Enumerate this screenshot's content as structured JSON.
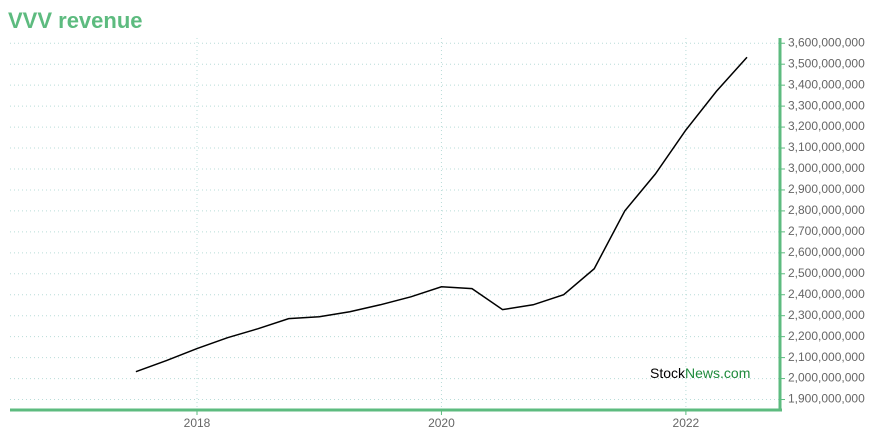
{
  "chart_data": {
    "type": "line",
    "title": "VVV revenue",
    "x": [
      2017.5,
      2017.75,
      2018,
      2018.25,
      2018.5,
      2018.75,
      2019,
      2019.25,
      2019.5,
      2019.75,
      2020,
      2020.25,
      2020.5,
      2020.75,
      2021,
      2021.25,
      2021.5,
      2021.75,
      2022,
      2022.25,
      2022.5
    ],
    "series": [
      {
        "name": "Revenue",
        "color": "#000000",
        "values": [
          2033000000,
          2086000000,
          2143000000,
          2195000000,
          2238000000,
          2286000000,
          2295000000,
          2319000000,
          2352000000,
          2390000000,
          2438000000,
          2429000000,
          2329000000,
          2352000000,
          2400000000,
          2524000000,
          2800000000,
          2976000000,
          3186000000,
          3371000000,
          3533000000
        ]
      }
    ],
    "xlim": [
      2016.47,
      2022.77
    ],
    "xticks": [
      2018,
      2020,
      2022
    ],
    "ylim": [
      1850000000,
      3625000000
    ],
    "yticks": [
      {
        "value": 1900000000,
        "label": "1,900,000,000"
      },
      {
        "value": 2000000000,
        "label": "2,000,000,000"
      },
      {
        "value": 2100000000,
        "label": "2,100,000,000"
      },
      {
        "value": 2200000000,
        "label": "2,200,000,000"
      },
      {
        "value": 2300000000,
        "label": "2,300,000,000"
      },
      {
        "value": 2400000000,
        "label": "2,400,000,000"
      },
      {
        "value": 2500000000,
        "label": "2,500,000,000"
      },
      {
        "value": 2600000000,
        "label": "2,600,000,000"
      },
      {
        "value": 2700000000,
        "label": "2,700,000,000"
      },
      {
        "value": 2800000000,
        "label": "2,800,000,000"
      },
      {
        "value": 2900000000,
        "label": "2,900,000,000"
      },
      {
        "value": 3000000000,
        "label": "3,000,000,000"
      },
      {
        "value": 3100000000,
        "label": "3,100,000,000"
      },
      {
        "value": 3200000000,
        "label": "3,200,000,000"
      },
      {
        "value": 3300000000,
        "label": "3,300,000,000"
      },
      {
        "value": 3400000000,
        "label": "3,400,000,000"
      },
      {
        "value": 3500000000,
        "label": "3,500,000,000"
      },
      {
        "value": 3600000000,
        "label": "3,600,000,000"
      }
    ],
    "grid": true,
    "axis_color": "#5dbb7f",
    "watermark": {
      "part1": "Stock",
      "part2": "News",
      "part3": ".com",
      "color2": "#1e8a3c"
    }
  }
}
